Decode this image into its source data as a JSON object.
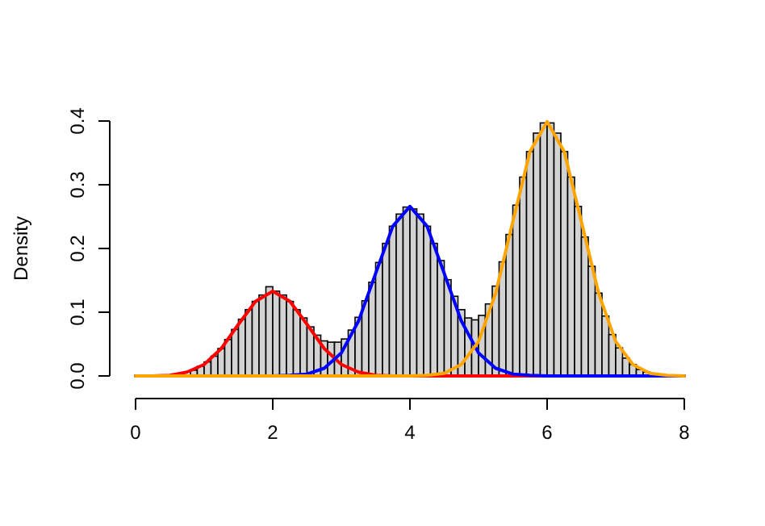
{
  "chart_data": {
    "type": "histogram",
    "ylabel": "Density",
    "color": "#d3d3d3",
    "bins": [
      0.8,
      0.9,
      1.0,
      1.1,
      1.2,
      1.3,
      1.4,
      1.5,
      1.6,
      1.7,
      1.8,
      1.9,
      2.0,
      2.1,
      2.2,
      2.3,
      2.4,
      2.5,
      2.6,
      2.7,
      2.8,
      2.9,
      3.0,
      3.1,
      3.2,
      3.3,
      3.4,
      3.5,
      3.6,
      3.7,
      3.8,
      3.9,
      4.0,
      4.1,
      4.2,
      4.3,
      4.4,
      4.5,
      4.6,
      4.7,
      4.8,
      4.9,
      5.0,
      5.1,
      5.2,
      5.3,
      5.4,
      5.5,
      5.6,
      5.7,
      5.8,
      5.9,
      6.0,
      6.1,
      6.2,
      6.3,
      6.4,
      6.5,
      6.6,
      6.7,
      6.8,
      6.9,
      7.0,
      7.1,
      7.2,
      7.3,
      7.4,
      7.5,
      7.6
    ],
    "values": [
      0.009,
      0.015,
      0.022,
      0.031,
      0.043,
      0.057,
      0.073,
      0.089,
      0.104,
      0.117,
      0.127,
      0.14,
      0.133,
      0.127,
      0.117,
      0.104,
      0.091,
      0.077,
      0.064,
      0.055,
      0.053,
      0.053,
      0.058,
      0.072,
      0.092,
      0.118,
      0.147,
      0.178,
      0.208,
      0.235,
      0.254,
      0.265,
      0.262,
      0.254,
      0.235,
      0.208,
      0.181,
      0.151,
      0.125,
      0.104,
      0.091,
      0.088,
      0.095,
      0.113,
      0.141,
      0.179,
      0.222,
      0.268,
      0.312,
      0.352,
      0.381,
      0.397,
      0.397,
      0.381,
      0.352,
      0.312,
      0.266,
      0.218,
      0.172,
      0.13,
      0.094,
      0.065,
      0.044,
      0.028,
      0.018,
      0.01,
      0.006,
      0.003
    ],
    "series": [
      {
        "type": "line",
        "color": "#ff0000",
        "x": [
          0,
          0.25,
          0.5,
          0.75,
          1,
          1.25,
          1.5,
          1.75,
          2,
          2.25,
          2.5,
          2.75,
          3,
          3.25,
          3.5,
          3.75,
          4,
          5,
          6,
          7,
          8
        ],
        "values": [
          0,
          0,
          0.001,
          0.006,
          0.018,
          0.043,
          0.081,
          0.117,
          0.133,
          0.117,
          0.081,
          0.043,
          0.018,
          0.006,
          0.001,
          0,
          0,
          0,
          0,
          0,
          0
        ]
      },
      {
        "type": "line",
        "color": "#0000ff",
        "x": [
          0,
          1,
          2,
          2.25,
          2.5,
          2.75,
          3,
          3.25,
          3.5,
          3.75,
          4,
          4.25,
          4.5,
          4.75,
          5,
          5.25,
          5.5,
          5.75,
          6,
          7,
          8
        ],
        "values": [
          0,
          0,
          0,
          0.001,
          0.003,
          0.012,
          0.036,
          0.086,
          0.161,
          0.235,
          0.266,
          0.235,
          0.161,
          0.086,
          0.036,
          0.012,
          0.003,
          0.001,
          0,
          0,
          0
        ]
      },
      {
        "type": "line",
        "color": "#ffa500",
        "x": [
          0,
          1,
          2,
          3,
          4,
          4.25,
          4.5,
          4.75,
          5,
          5.25,
          5.5,
          5.75,
          6,
          6.25,
          6.5,
          6.75,
          7,
          7.25,
          7.5,
          7.75,
          8
        ],
        "values": [
          0,
          0,
          0,
          0,
          0,
          0.001,
          0.004,
          0.018,
          0.054,
          0.13,
          0.242,
          0.352,
          0.399,
          0.352,
          0.242,
          0.13,
          0.054,
          0.018,
          0.004,
          0.001,
          0
        ]
      }
    ],
    "xlim": [
      0,
      8
    ],
    "xticks": [
      0,
      2,
      4,
      6,
      8
    ],
    "ylim": [
      0,
      0.4
    ],
    "yticks": [
      {
        "value": 0,
        "label": "0.0"
      },
      {
        "value": 0.1,
        "label": "0.1"
      },
      {
        "value": 0.2,
        "label": "0.2"
      },
      {
        "value": 0.3,
        "label": "0.3"
      },
      {
        "value": 0.4,
        "label": "0.4"
      }
    ]
  }
}
